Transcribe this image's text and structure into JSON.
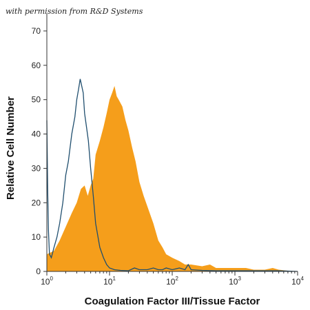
{
  "credit": "with permission from R&D Systems",
  "chart_data": {
    "type": "area",
    "xlabel": "Coagulation Factor III/Tissue Factor",
    "ylabel": "Relative Cell Number",
    "x_scale": "log",
    "xlim": [
      1,
      10000
    ],
    "ylim": [
      0,
      75
    ],
    "x_ticks": [
      {
        "value": 1,
        "base": "10",
        "exp": "0"
      },
      {
        "value": 10,
        "base": "10",
        "exp": "1"
      },
      {
        "value": 100,
        "base": "10",
        "exp": "2"
      },
      {
        "value": 1000,
        "base": "10",
        "exp": "3"
      },
      {
        "value": 10000,
        "base": "10",
        "exp": "4"
      }
    ],
    "y_ticks": [
      "0",
      "10",
      "20",
      "30",
      "40",
      "50",
      "60",
      "70"
    ],
    "grid": false,
    "colors": {
      "filled": "#F59E1B",
      "outline": "#1F4E6E",
      "axis": "#333333"
    },
    "series": [
      {
        "style": "outline",
        "color": "#1F4E6E",
        "x": [
          1,
          1.03,
          1.06,
          1.1,
          1.18,
          1.3,
          1.45,
          1.6,
          1.8,
          2.0,
          2.2,
          2.5,
          2.8,
          3.0,
          3.2,
          3.4,
          3.6,
          3.8,
          4.0,
          4.3,
          4.6,
          5.0,
          5.5,
          6.0,
          7.0,
          8.0,
          9.0,
          10,
          12,
          15,
          20,
          25,
          30,
          40,
          50,
          60,
          70,
          80,
          100,
          130,
          160,
          180,
          200,
          300,
          500,
          1000,
          2000,
          5000,
          10000
        ],
        "values": [
          44,
          24,
          12,
          5,
          4,
          7,
          10,
          14,
          20,
          28,
          32,
          40,
          45,
          50,
          53,
          56,
          54,
          52,
          46,
          42,
          38,
          30,
          22,
          14,
          7,
          4,
          2,
          1,
          0.5,
          0.3,
          0.2,
          1,
          0.5,
          0.5,
          1,
          0.5,
          0.5,
          1,
          0.5,
          1,
          0.5,
          2,
          0.5,
          0.3,
          0.2,
          0.2,
          0.2,
          0.2,
          0
        ]
      },
      {
        "style": "filled",
        "color": "#F59E1B",
        "x": [
          1,
          1.3,
          1.6,
          2.0,
          2.5,
          3.0,
          3.5,
          4.0,
          4.5,
          5.0,
          5.5,
          6.0,
          7.0,
          8.0,
          9.0,
          10,
          11,
          12,
          13,
          14,
          16,
          18,
          20,
          23,
          26,
          30,
          35,
          40,
          50,
          60,
          70,
          80,
          100,
          130,
          160,
          200,
          300,
          400,
          500,
          700,
          1000,
          1500,
          2000,
          3000,
          4000,
          5000,
          7000,
          10000
        ],
        "values": [
          5,
          6,
          9,
          13,
          17,
          20,
          24,
          25,
          22,
          25,
          27,
          34,
          38,
          42,
          46,
          50,
          52,
          54,
          51,
          50,
          48,
          44,
          41,
          36,
          32,
          26,
          22,
          19,
          14,
          9,
          7,
          5,
          4,
          3,
          2,
          2,
          1.5,
          2,
          1,
          1,
          1,
          1,
          0.5,
          0.5,
          1,
          0.5,
          0.2,
          0
        ]
      }
    ]
  }
}
